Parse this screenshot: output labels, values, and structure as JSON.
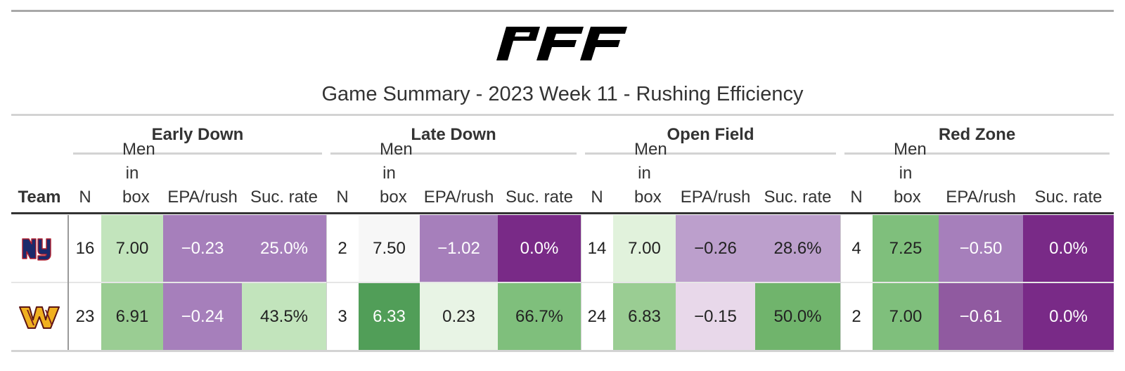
{
  "brand": {
    "logo": "PFF"
  },
  "title": "Game Summary - 2023 Week 11 - Rushing Efficiency",
  "header": {
    "team": "Team",
    "groups": [
      "Early Down",
      "Late Down",
      "Open Field",
      "Red Zone"
    ],
    "columns": [
      "N",
      "Men in box",
      "EPA/rush",
      "Suc. rate"
    ]
  },
  "colors": {
    "purple_dark": "#792a87",
    "purple_mid": "#a67fbb",
    "purple_light": "#bc9fcc",
    "purple_pale": "#e8d8ea",
    "green_dark": "#519e58",
    "green_mid": "#7fbf7c",
    "green_light": "#c2e4bc",
    "green_pale": "#e8f4e5",
    "neutral": "#f7f7f7"
  },
  "chart_data": {
    "type": "table",
    "title": "Game Summary - 2023 Week 11 - Rushing Efficiency",
    "rows": [
      {
        "team_icon": "new-york-giants-ny-logo",
        "cells": [
          {
            "text": "16",
            "fill": "#ffffff",
            "color": "#222222"
          },
          {
            "text": "7.00",
            "fill": "#c2e4bc",
            "color": "#222222"
          },
          {
            "text": "−0.23",
            "fill": "#a67fbb",
            "color": "#ffffff"
          },
          {
            "text": "25.0%",
            "fill": "#a67fbb",
            "color": "#ffffff"
          },
          {
            "text": "2",
            "fill": "#ffffff",
            "color": "#222222"
          },
          {
            "text": "7.50",
            "fill": "#f7f7f7",
            "color": "#222222"
          },
          {
            "text": "−1.02",
            "fill": "#a67fbb",
            "color": "#ffffff"
          },
          {
            "text": "0.0%",
            "fill": "#792a87",
            "color": "#ffffff"
          },
          {
            "text": "14",
            "fill": "#ffffff",
            "color": "#222222"
          },
          {
            "text": "7.00",
            "fill": "#e1f2dc",
            "color": "#222222"
          },
          {
            "text": "−0.26",
            "fill": "#bc9fcc",
            "color": "#222222"
          },
          {
            "text": "28.6%",
            "fill": "#bc9fcc",
            "color": "#222222"
          },
          {
            "text": "4",
            "fill": "#ffffff",
            "color": "#222222"
          },
          {
            "text": "7.25",
            "fill": "#7fbf7c",
            "color": "#222222"
          },
          {
            "text": "−0.50",
            "fill": "#a67fbb",
            "color": "#ffffff"
          },
          {
            "text": "0.0%",
            "fill": "#792a87",
            "color": "#ffffff"
          }
        ]
      },
      {
        "team_icon": "washington-commanders-w-logo",
        "cells": [
          {
            "text": "23",
            "fill": "#ffffff",
            "color": "#222222"
          },
          {
            "text": "6.91",
            "fill": "#9acd93",
            "color": "#222222"
          },
          {
            "text": "−0.24",
            "fill": "#a67fbb",
            "color": "#ffffff"
          },
          {
            "text": "43.5%",
            "fill": "#c2e4bc",
            "color": "#222222"
          },
          {
            "text": "3",
            "fill": "#ffffff",
            "color": "#222222"
          },
          {
            "text": "6.33",
            "fill": "#519e58",
            "color": "#ffffff"
          },
          {
            "text": "0.23",
            "fill": "#e8f4e5",
            "color": "#222222"
          },
          {
            "text": "66.7%",
            "fill": "#7fbf7c",
            "color": "#222222"
          },
          {
            "text": "24",
            "fill": "#ffffff",
            "color": "#222222"
          },
          {
            "text": "6.83",
            "fill": "#9acd93",
            "color": "#222222"
          },
          {
            "text": "−0.15",
            "fill": "#e8d8ea",
            "color": "#222222"
          },
          {
            "text": "50.0%",
            "fill": "#70b46c",
            "color": "#222222"
          },
          {
            "text": "2",
            "fill": "#ffffff",
            "color": "#222222"
          },
          {
            "text": "7.00",
            "fill": "#7fbf7c",
            "color": "#222222"
          },
          {
            "text": "−0.61",
            "fill": "#905aa0",
            "color": "#ffffff"
          },
          {
            "text": "0.0%",
            "fill": "#792a87",
            "color": "#ffffff"
          }
        ]
      }
    ]
  }
}
